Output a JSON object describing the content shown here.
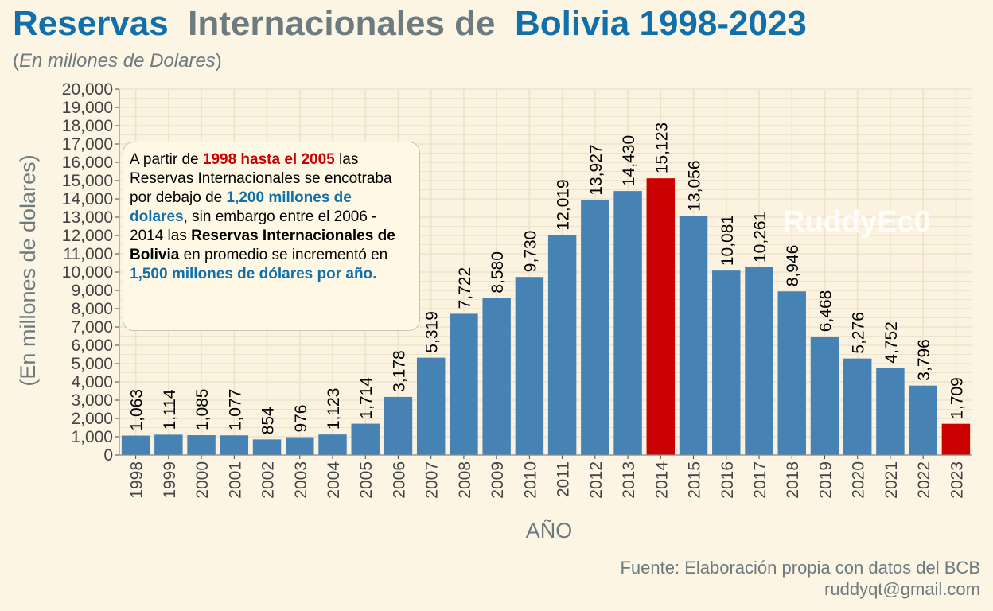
{
  "header": {
    "title_part1": "Reservas  ",
    "title_part2": "Internacionales de  ",
    "title_part3": "Bolivia 1998-2023",
    "subtitle_open": "(",
    "subtitle_italic": "En millones de Dolares",
    "subtitle_close": ")"
  },
  "annotation": {
    "seg1": "A partir de ",
    "seg2": "1998 hasta el 2005",
    "seg3": " las Reservas Internacionales se encotraba por debajo de ",
    "seg4": "1,200 millones de dolares",
    "seg5": ", sin embargo entre el 2006 - 2014 las ",
    "seg6": "Reservas Internacionales de Bolivia",
    "seg7": " en promedio se incrementó en ",
    "seg8": "1,500 millones de dólares por año."
  },
  "watermark": "RuddyEc0",
  "footer": {
    "source": "Fuente: Elaboración propia con datos del BCB",
    "email": "ruddyqt@gmail.com"
  },
  "colors": {
    "bar": "#4682b4",
    "highlight": "#cc0000",
    "grid": "#ece3cc",
    "axis_text": "#444444",
    "axis_title": "#6c7b80"
  },
  "chart_data": {
    "type": "bar",
    "xlabel": "AÑO",
    "ylabel": "(En millones de dolares)",
    "ylim": [
      0,
      20000
    ],
    "y_tick_step": 1000,
    "grid": true,
    "categories": [
      "1998",
      "1999",
      "2000",
      "2001",
      "2002",
      "2003",
      "2004",
      "2005",
      "2006",
      "2007",
      "2008",
      "2009",
      "2010",
      "2011",
      "2012",
      "2013",
      "2014",
      "2015",
      "2016",
      "2017",
      "2018",
      "2019",
      "2020",
      "2021",
      "2022",
      "2023"
    ],
    "values": [
      1063,
      1114,
      1085,
      1077,
      854,
      976,
      1123,
      1714,
      3178,
      5319,
      7722,
      8580,
      9730,
      12019,
      13927,
      14430,
      15123,
      13056,
      10081,
      10261,
      8946,
      6468,
      5276,
      4752,
      3796,
      1709
    ],
    "value_labels": [
      "1,063",
      "1,114",
      "1,085",
      "1,077",
      "854",
      "976",
      "1,123",
      "1,714",
      "3,178",
      "5,319",
      "7,722",
      "8,580",
      "9,730",
      "12,019",
      "13,927",
      "14,430",
      "15,123",
      "13,056",
      "10,081",
      "10,261",
      "8,946",
      "6,468",
      "5,276",
      "4,752",
      "3,796",
      "1,709"
    ],
    "y_tick_labels": [
      "0",
      "1,000",
      "2,000",
      "3,000",
      "4,000",
      "5,000",
      "6,000",
      "7,000",
      "8,000",
      "9,000",
      "10,000",
      "11,000",
      "12,000",
      "13,000",
      "14,000",
      "15,000",
      "16,000",
      "17,000",
      "18,000",
      "19,000",
      "20,000"
    ],
    "highlighted": [
      "2014",
      "2023"
    ]
  }
}
